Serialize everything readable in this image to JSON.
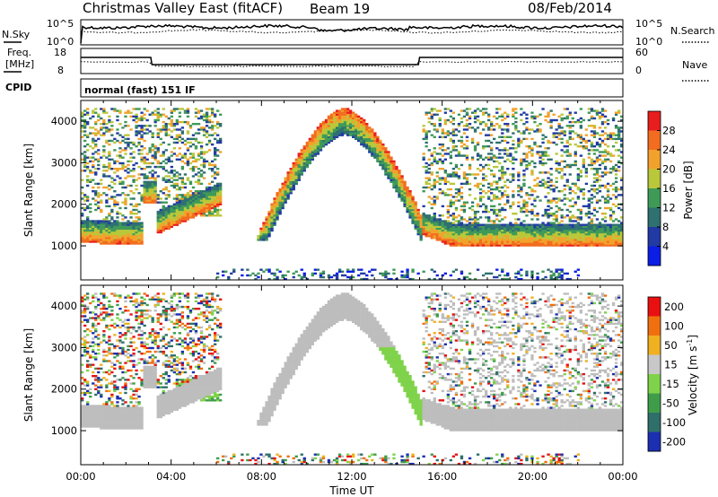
{
  "header": {
    "title": "Christmas Valley East (fitACF)",
    "beam": "Beam 19",
    "date": "08/Feb/2014"
  },
  "top_panels": {
    "nsky_label": "N.Sky",
    "nsky_top": "10^5",
    "nsky_bottom": "10^0",
    "nsearch_label": "N.Search",
    "nsearch_top": "10^5",
    "nsearch_bottom": "10^0",
    "freq_label": "Freq.",
    "freq_unit": "[MHz]",
    "freq_top": "18",
    "freq_bottom": "8",
    "nave_label": "Nave",
    "nave_top": "60",
    "nave_bottom": "0",
    "cpid_label": "CPID",
    "cpid_text": "normal (fast) 151 IF"
  },
  "chart_data": [
    {
      "type": "heatmap",
      "name": "power",
      "ylabel": "Slant Range [km]",
      "xlabel": "",
      "ylim": [
        180,
        4500
      ],
      "yticks": [
        1000,
        2000,
        3000,
        4000
      ],
      "xlim": [
        0,
        24
      ],
      "colorbar": {
        "label": "Power [dB]",
        "ticks": [
          4,
          8,
          12,
          16,
          20,
          24,
          28
        ],
        "range": [
          0,
          32
        ],
        "colors": [
          "#0b1ee6",
          "#213aa4",
          "#2f7070",
          "#3f9a58",
          "#b9c83a",
          "#f2a22c",
          "#f26d1f",
          "#e81e1e"
        ]
      }
    },
    {
      "type": "heatmap",
      "name": "velocity",
      "ylabel": "Slant Range [km]",
      "xlabel": "Time UT",
      "ylim": [
        180,
        4500
      ],
      "yticks": [
        1000,
        2000,
        3000,
        4000
      ],
      "xlim": [
        0,
        24
      ],
      "xticks": [
        "00:00",
        "04:00",
        "08:00",
        "12:00",
        "16:00",
        "20:00",
        "00:00"
      ],
      "colorbar": {
        "label": "Velocity [m s^-1]",
        "ticks": [
          "200",
          "100",
          "50",
          "15",
          "-15",
          "-50",
          "-100",
          "-200"
        ],
        "colors": [
          "#1b2fb0",
          "#2f6f6a",
          "#3f9d4a",
          "#7fd34a",
          "#c8c8c8",
          "#f0b020",
          "#f07010",
          "#e81010"
        ]
      }
    }
  ],
  "colors": {
    "background": "#ffffff",
    "ground_scatter_gray": "#bdbdbd"
  }
}
